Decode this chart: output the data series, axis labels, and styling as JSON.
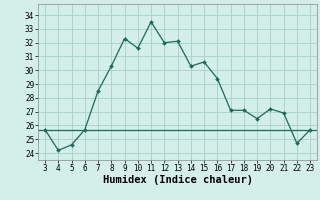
{
  "x": [
    3,
    4,
    5,
    6,
    7,
    8,
    9,
    10,
    11,
    12,
    13,
    14,
    15,
    16,
    17,
    18,
    19,
    20,
    21,
    22,
    23
  ],
  "y": [
    25.7,
    24.2,
    24.6,
    25.7,
    28.5,
    30.3,
    32.3,
    31.6,
    33.5,
    32.0,
    32.1,
    30.3,
    30.6,
    29.4,
    27.1,
    27.1,
    26.5,
    27.2,
    26.9,
    24.7,
    25.7
  ],
  "hline_y": 25.7,
  "line_color": "#1a6b5a",
  "bg_color": "#d4eeea",
  "grid_color": "#aed4ce",
  "xlabel": "Humidex (Indice chaleur)",
  "ylim": [
    23.5,
    34.8
  ],
  "xlim": [
    2.5,
    23.5
  ],
  "yticks": [
    24,
    25,
    26,
    27,
    28,
    29,
    30,
    31,
    32,
    33,
    34
  ],
  "xticks": [
    3,
    4,
    5,
    6,
    7,
    8,
    9,
    10,
    11,
    12,
    13,
    14,
    15,
    16,
    17,
    18,
    19,
    20,
    21,
    22,
    23
  ],
  "tick_fontsize": 5.5,
  "xlabel_fontsize": 7.5
}
